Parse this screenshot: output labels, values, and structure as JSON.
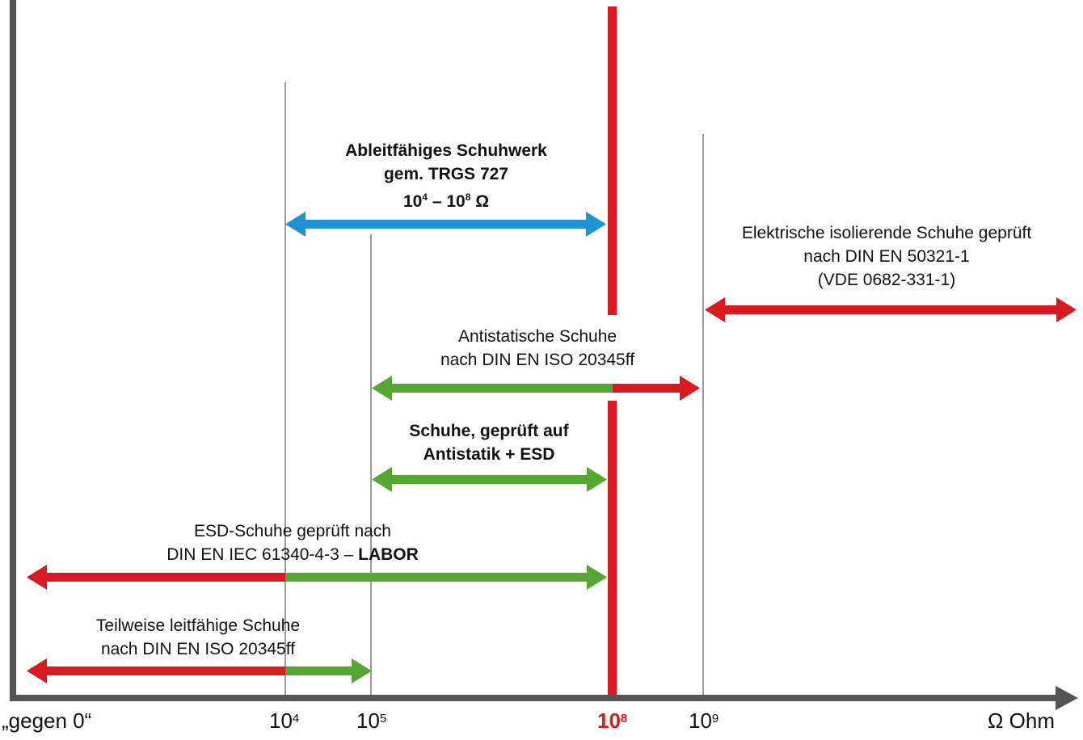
{
  "colors": {
    "axis": "#555555",
    "grid": "#9a9a9a",
    "red": "#d91a20",
    "green": "#55a633",
    "blue": "#1f93d2"
  },
  "axis": {
    "ticks": [
      {
        "key": "zero",
        "base": "„gegen 0“",
        "exp": ""
      },
      {
        "key": "e4",
        "base": "10",
        "exp": "4"
      },
      {
        "key": "e5",
        "base": "10",
        "exp": "5"
      },
      {
        "key": "e8",
        "base": "10",
        "exp": "8"
      },
      {
        "key": "e9",
        "base": "10",
        "exp": "9"
      },
      {
        "key": "unit",
        "base": "Ω Ohm",
        "exp": ""
      }
    ]
  },
  "ranges": {
    "ableitfaehig": {
      "line1": "Ableitfähiges Schuhwerk",
      "line2": "gem. TRGS 727",
      "line3_base1": "10",
      "line3_exp1": "4",
      "line3_mid": " – ",
      "line3_base2": "10",
      "line3_exp2": "8",
      "line3_unit": " Ω",
      "from": "10^4",
      "to": "10^8"
    },
    "isolierend": {
      "line1": "Elektrische isolierende Schuhe geprüft",
      "line2": "nach DIN EN 50321-1",
      "line3": "(VDE 0682-331-1)",
      "from": "10^9",
      "to": "∞"
    },
    "antistatisch": {
      "line1": "Antistatische Schuhe",
      "line2": "nach DIN EN ISO 20345ff",
      "from": "10^5",
      "to": "10^9"
    },
    "antistatik_esd": {
      "line1": "Schuhe, geprüft auf",
      "line2": "Antistatik + ESD",
      "from": "10^5",
      "to": "10^8"
    },
    "esd_labor": {
      "line1": "ESD-Schuhe geprüft nach",
      "line2_regular": "DIN EN IEC 61340-4-3 – ",
      "line2_bold": "LABOR",
      "from": "0",
      "to": "10^8"
    },
    "teilweise": {
      "line1": "Teilweise leitfähige Schuhe",
      "line2": "nach DIN EN ISO 20345ff",
      "from": "0",
      "to": "10^5"
    }
  }
}
